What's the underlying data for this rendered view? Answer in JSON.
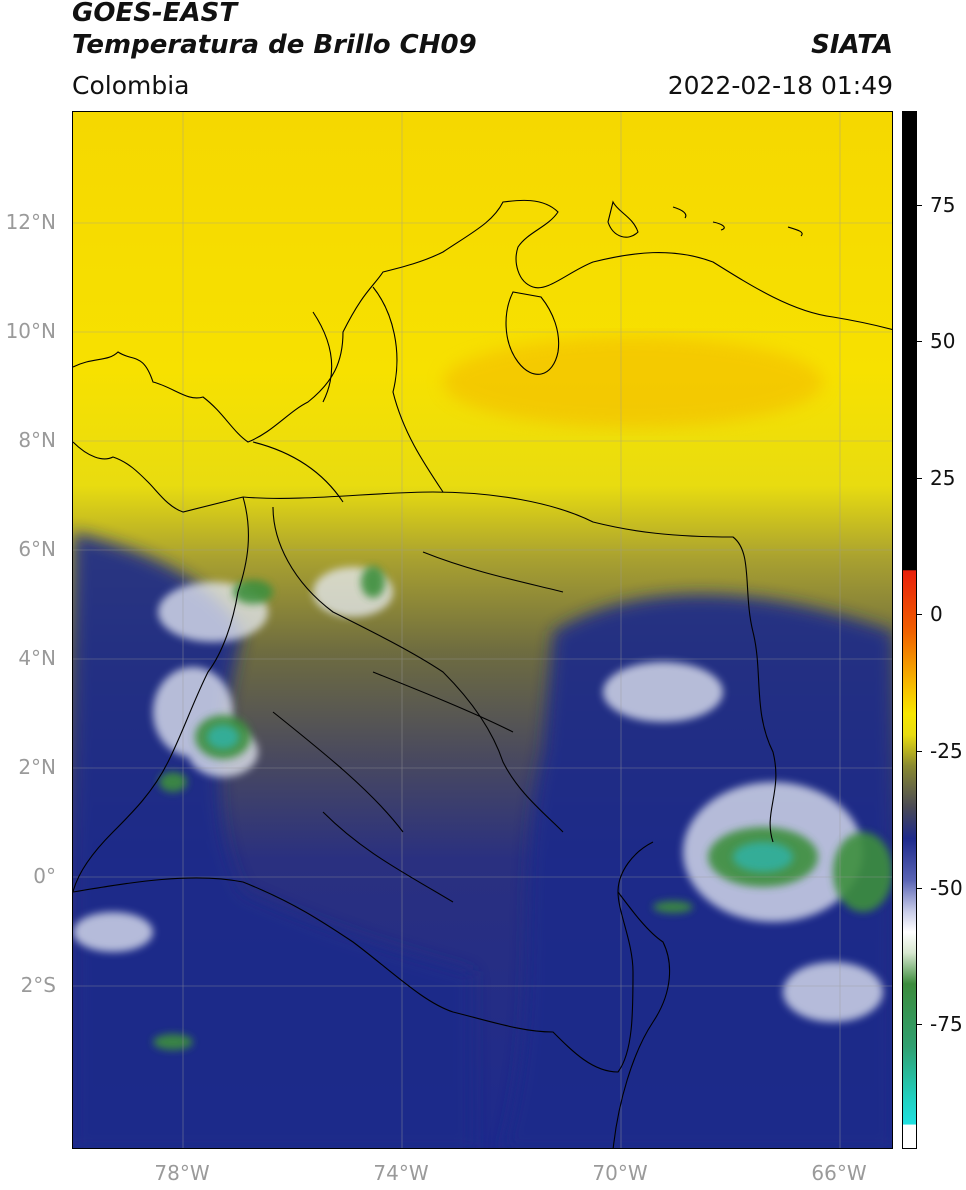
{
  "header": {
    "title_line1": "GOES-EAST",
    "title_line2": "Temperatura de Brillo CH09",
    "source": "SIATA",
    "region": "Colombia",
    "timestamp": "2022-02-18 01:49"
  },
  "map": {
    "lat_labels": [
      "12°N",
      "10°N",
      "8°N",
      "6°N",
      "4°N",
      "2°N",
      "0°",
      "2°S"
    ],
    "lon_labels": [
      "78°W",
      "74°W",
      "70°W",
      "66°W"
    ],
    "lon_range": [
      "80°W",
      "65°W"
    ],
    "lat_range": [
      "5°S",
      "14°N"
    ],
    "gridlines": true
  },
  "colorbar": {
    "tick_labels": [
      "75",
      "50",
      "25",
      "0",
      "-25",
      "-50",
      "-75"
    ],
    "colors": {
      "black": "#000000",
      "red": "#e8200c",
      "orange": "#f08800",
      "yellow": "#f7e600",
      "olive": "#6e6e2a",
      "gray": "#4a4a56",
      "navy": "#1e2a8c",
      "white": "#ffffff",
      "green": "#3c8c3c",
      "teal": "#20c0a0",
      "cyan": "#20e0e0"
    }
  }
}
